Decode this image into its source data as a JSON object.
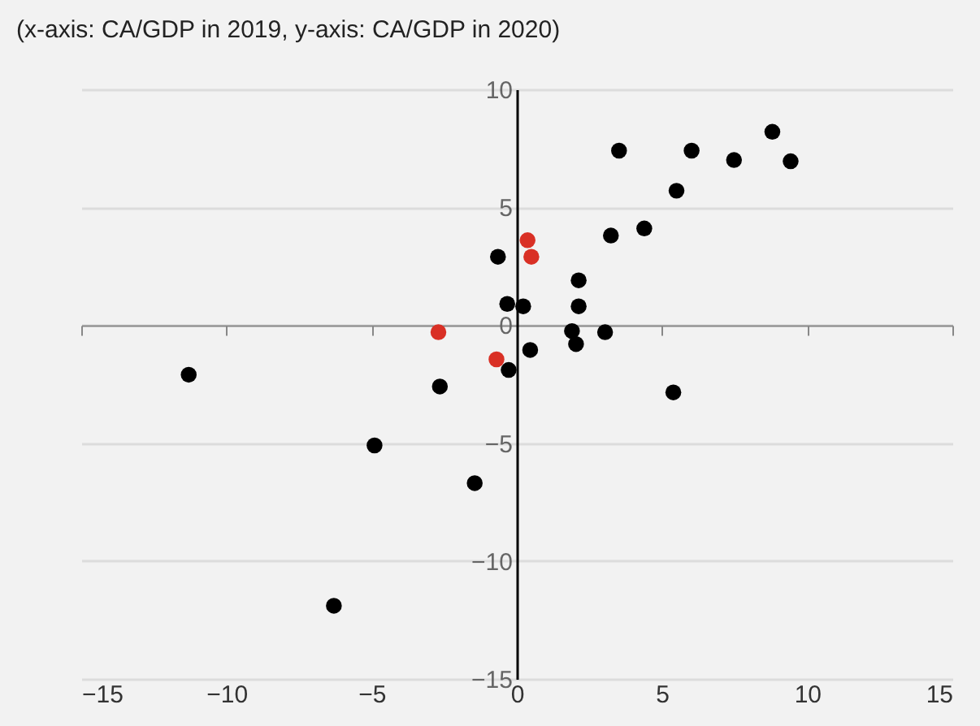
{
  "chart_data": {
    "type": "scatter",
    "title": "(x-axis: CA/GDP in 2019, y-axis: CA/GDP in 2020)",
    "xlim": [
      -15,
      15
    ],
    "xticks": [
      -15,
      -10,
      -5,
      0,
      5,
      10,
      15
    ],
    "ylim": [
      -15,
      10
    ],
    "yticks": [
      -15,
      -10,
      -5,
      0,
      5,
      10
    ],
    "grid": "y",
    "legend": false,
    "marker": "circle",
    "series": [
      {
        "color": "#000000",
        "x": [
          -11.3,
          -2.65,
          -4.9,
          -1.45,
          -6.3,
          -0.65,
          -0.33,
          0.22,
          -0.28,
          0.46,
          2.13,
          2.13,
          1.9,
          2.04,
          3.04,
          3.24,
          3.52,
          4.39,
          5.5,
          5.39,
          6.02,
          7.48,
          8.8,
          9.43
        ],
        "values": [
          -2.1,
          -2.6,
          -5.1,
          -6.7,
          -11.9,
          2.9,
          0.9,
          0.8,
          -1.9,
          -1.05,
          1.9,
          0.8,
          -0.25,
          -0.8,
          -0.3,
          3.8,
          7.4,
          4.1,
          5.7,
          -2.85,
          7.4,
          7.0,
          8.2,
          6.95
        ]
      },
      {
        "color": "#d93025",
        "x": [
          -2.7,
          -0.7,
          0.37,
          0.5
        ],
        "values": [
          -0.3,
          -1.45,
          3.6,
          2.9
        ]
      }
    ]
  }
}
